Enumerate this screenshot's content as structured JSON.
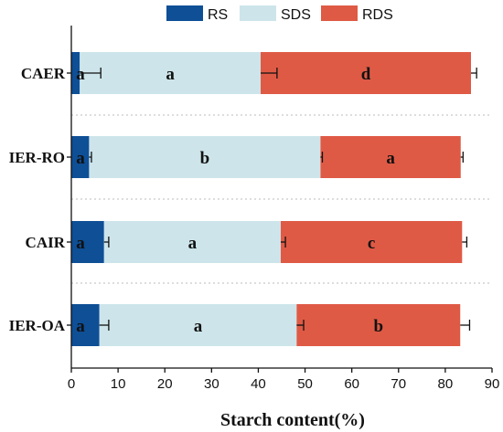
{
  "chart_data": {
    "type": "bar",
    "orientation": "horizontal",
    "stacked": true,
    "categories": [
      "CAER",
      "IER-RO",
      "CAIR",
      "IER-OA"
    ],
    "series": [
      {
        "name": "RS",
        "color": "#0e4f96",
        "values": [
          1.8,
          3.8,
          7.0,
          6.0
        ],
        "errors": [
          4.5,
          0.5,
          1.0,
          2.0
        ],
        "labels": [
          "a",
          "a",
          "a",
          "a"
        ]
      },
      {
        "name": "SDS",
        "color": "#cde5ea",
        "values": [
          38.7,
          49.5,
          37.8,
          42.2
        ],
        "errors": [
          3.5,
          0.4,
          1.0,
          1.5
        ],
        "labels": [
          "a",
          "b",
          "a",
          "a"
        ]
      },
      {
        "name": "RDS",
        "color": "#df5a45",
        "values": [
          45.0,
          30.0,
          38.8,
          35.0
        ],
        "errors": [
          1.2,
          0.5,
          1.0,
          2.0
        ],
        "labels": [
          "d",
          "a",
          "c",
          "b"
        ]
      }
    ],
    "xlabel": "Starch content(%)",
    "ylabel": "",
    "xlim": [
      0,
      90
    ],
    "xticks": [
      0,
      10,
      20,
      30,
      40,
      50,
      60,
      70,
      80,
      90
    ],
    "grid": "dotted horizontal separators",
    "legend": "top"
  }
}
